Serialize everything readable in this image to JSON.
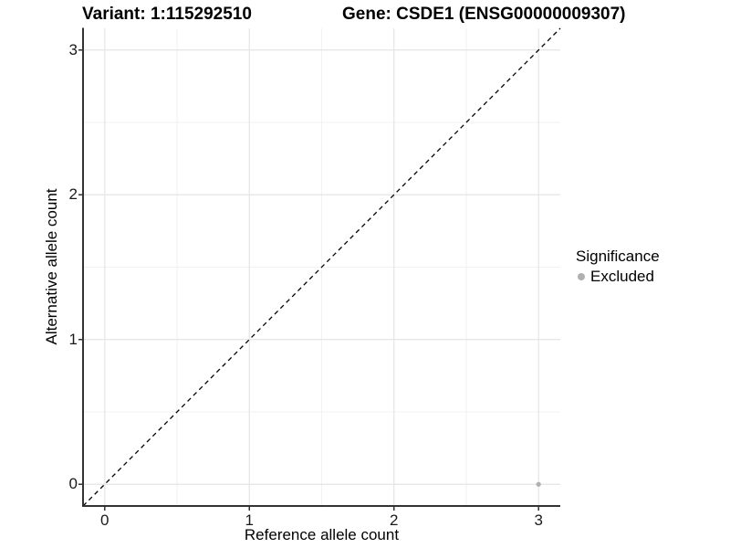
{
  "chart_data": {
    "type": "scatter",
    "title_left": "Variant: 1:115292510",
    "title_right": "Gene: CSDE1 (ENSG00000009307)",
    "xlabel": "Reference allele count",
    "ylabel": "Alternative allele count",
    "xlim": [
      -0.15,
      3.15
    ],
    "ylim": [
      -0.15,
      3.15
    ],
    "x_tick_labels": [
      "0",
      "1",
      "2",
      "3"
    ],
    "x_tick_values": [
      0,
      1,
      2,
      3
    ],
    "y_tick_labels": [
      "0",
      "1",
      "2",
      "3"
    ],
    "y_tick_values": [
      0,
      1,
      2,
      3
    ],
    "grid": {
      "major": true,
      "minor": true
    },
    "legend_position": "right",
    "legend_title": "Significance",
    "identity_line": {
      "style": "dashed",
      "from": [
        -0.15,
        -0.15
      ],
      "to": [
        3.15,
        3.15
      ]
    },
    "series": [
      {
        "name": "Excluded",
        "color": "#b0b0b0",
        "points": [
          {
            "x": 3,
            "y": 0
          }
        ]
      }
    ]
  },
  "colors": {
    "grid_major": "#e5e5e5",
    "grid_minor": "#f2f2f2",
    "axis_line": "#333333",
    "tick_mark": "#333333",
    "identity_line": "#000000",
    "point": "#b0b0b0"
  }
}
